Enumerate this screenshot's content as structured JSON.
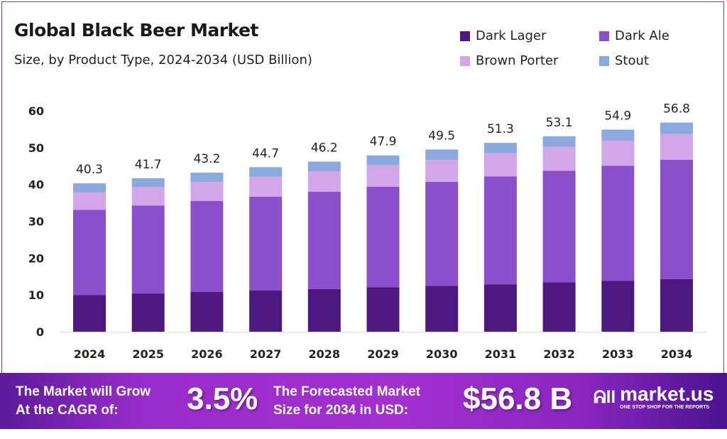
{
  "chart_data": {
    "type": "bar",
    "stacked": true,
    "title": "Global Black Beer Market",
    "subtitle": "Size, by Product Type, 2024-2034 (USD Billion)",
    "categories": [
      "2024",
      "2025",
      "2026",
      "2027",
      "2028",
      "2029",
      "2030",
      "2031",
      "2032",
      "2033",
      "2034"
    ],
    "series": [
      {
        "name": "Dark Lager",
        "color": "#4e1882",
        "values": [
          10.0,
          10.4,
          10.8,
          11.2,
          11.6,
          12.1,
          12.5,
          12.9,
          13.4,
          13.8,
          14.3
        ]
      },
      {
        "name": "Dark Ale",
        "color": "#8a4fcb",
        "values": [
          23.1,
          23.9,
          24.7,
          25.5,
          26.4,
          27.3,
          28.2,
          29.3,
          30.3,
          31.3,
          32.4
        ]
      },
      {
        "name": "Brown Porter",
        "color": "#d3a6ea",
        "values": [
          4.8,
          5.0,
          5.2,
          5.4,
          5.6,
          5.8,
          6.0,
          6.3,
          6.5,
          6.8,
          7.0
        ]
      },
      {
        "name": "Stout",
        "color": "#8aaadf",
        "values": [
          2.4,
          2.4,
          2.5,
          2.6,
          2.6,
          2.7,
          2.8,
          2.8,
          2.9,
          3.0,
          3.1
        ]
      }
    ],
    "totals": [
      "40.3",
      "41.7",
      "43.2",
      "44.7",
      "46.2",
      "47.9",
      "49.5",
      "51.3",
      "53.1",
      "54.9",
      "56.8"
    ],
    "yticks": [
      "0",
      "10",
      "20",
      "30",
      "40",
      "50",
      "60"
    ],
    "ylim": [
      0,
      60
    ],
    "grid": false,
    "legend_position": "top-right"
  },
  "banner": {
    "cagr_label_1": "The Market will Grow",
    "cagr_label_2": "At the CAGR of:",
    "cagr_value": "3.5%",
    "forecast_label_1": "The Forecasted Market",
    "forecast_label_2": "Size for 2034 in USD:",
    "forecast_value": "$56.8 B",
    "logo_name": "market.us",
    "logo_tagline": "ONE STOP SHOP FOR THE REPORTS"
  }
}
